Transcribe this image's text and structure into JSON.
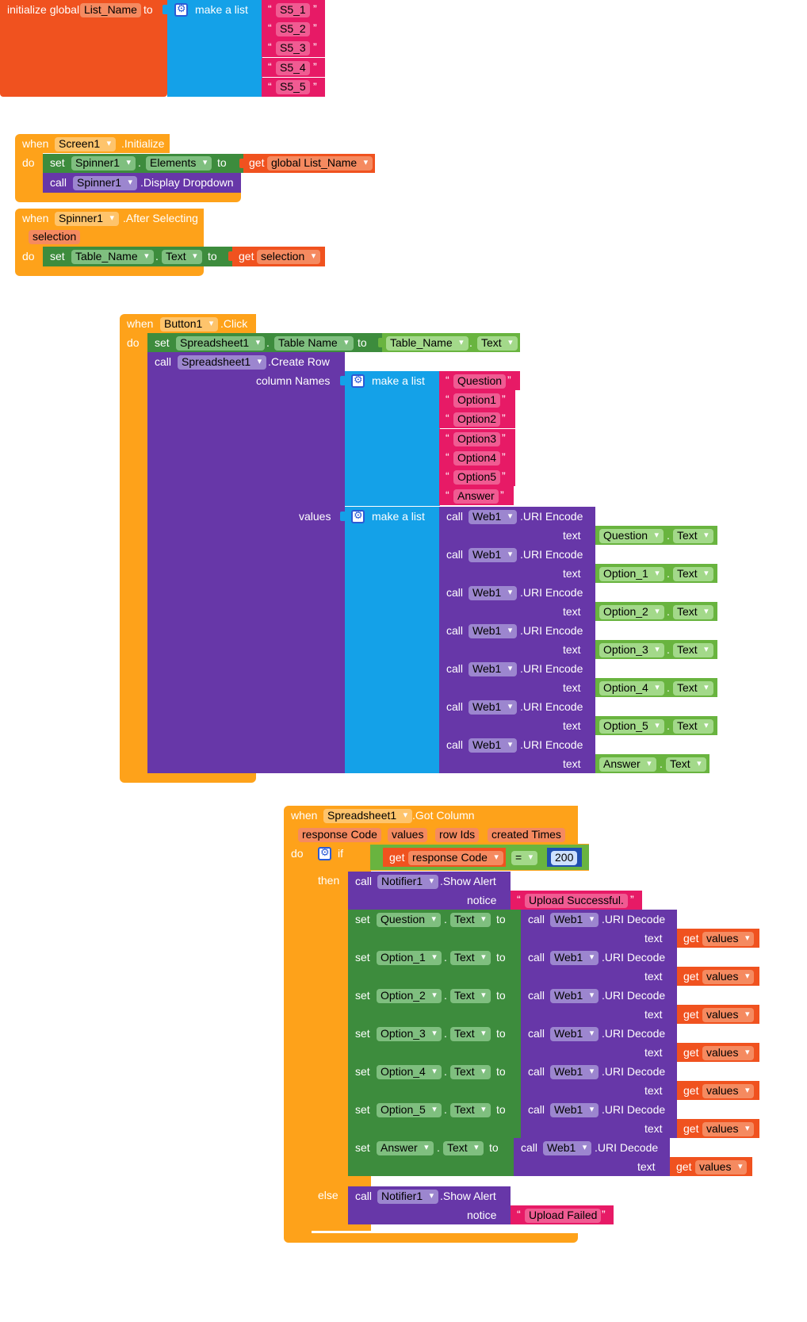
{
  "block1": {
    "init_label": "initialize global",
    "var_name": "List_Name",
    "to": "to",
    "make_list": "make a list",
    "items": [
      "S5_1",
      "S5_2",
      "S5_3",
      "S5_4",
      "S5_5"
    ]
  },
  "block2": {
    "when": "when",
    "component": "Screen1",
    "event": ".Initialize",
    "do": "do",
    "set": "set",
    "spinner": "Spinner1",
    "property": "Elements",
    "to": "to",
    "get": "get",
    "get_var": "global List_Name",
    "call": "call",
    "call_comp": "Spinner1",
    "method": ".Display Dropdown"
  },
  "block3": {
    "when": "when",
    "component": "Spinner1",
    "event": ".After Selecting",
    "param": "selection",
    "do": "do",
    "set": "set",
    "target": "Table_Name",
    "property": "Text",
    "to": "to",
    "get": "get",
    "get_var": "selection"
  },
  "block4": {
    "when": "when",
    "component": "Button1",
    "event": ".Click",
    "do": "do",
    "set": "set",
    "sheet": "Spreadsheet1",
    "prop": "Table Name",
    "to": "to",
    "src": "Table_Name",
    "src_prop": "Text",
    "call": "call",
    "method": ".Create Row",
    "column_names": "column Names",
    "values_label": "values",
    "make_list": "make a list",
    "columns": [
      "Question",
      "Option1",
      "Option2",
      "Option3",
      "Option4",
      "Option5",
      "Answer"
    ],
    "web": "Web1",
    "encode": ".URI Encode",
    "text": "text",
    "sources": [
      "Question",
      "Option_1",
      "Option_2",
      "Option_3",
      "Option_4",
      "Option_5",
      "Answer"
    ],
    "text_prop": "Text"
  },
  "block5": {
    "when": "when",
    "component": "Spreadsheet1",
    "event": ".Got Column",
    "params": [
      "response Code",
      "values",
      "row Ids",
      "created Times"
    ],
    "do": "do",
    "if": "if",
    "then": "then",
    "else": "else",
    "get": "get",
    "cond_var": "response Code",
    "op": "=",
    "num": "200",
    "call": "call",
    "notifier": "Notifier1",
    "show_alert": ".Show Alert",
    "notice": "notice",
    "success": "Upload Successful.",
    "failed": "Upload Failed",
    "set": "set",
    "to": "to",
    "web": "Web1",
    "decode": ".URI Decode",
    "text": "text",
    "values_var": "values",
    "targets": [
      "Question",
      "Option_1",
      "Option_2",
      "Option_3",
      "Option_4",
      "Option_5",
      "Answer"
    ],
    "text_prop": "Text"
  }
}
